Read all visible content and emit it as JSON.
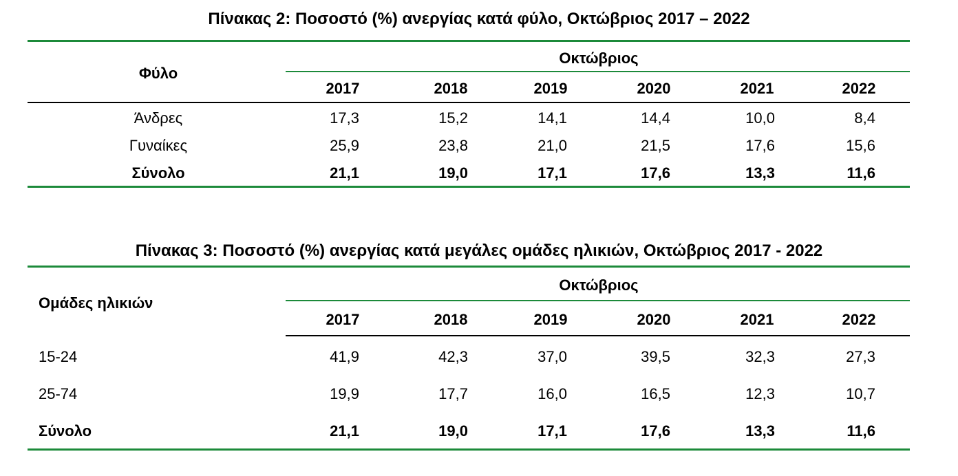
{
  "table2": {
    "title": "Πίνακας 2: Ποσοστό (%) ανεργίας κατά φύλο, Οκτώβριος 2017 – 2022",
    "row_header": "Φύλο",
    "group_header": "Οκτώβριος",
    "years": [
      "2017",
      "2018",
      "2019",
      "2020",
      "2021",
      "2022"
    ],
    "rows": [
      {
        "label": "Άνδρες",
        "values": [
          "17,3",
          "15,2",
          "14,1",
          "14,4",
          "10,0",
          "8,4"
        ]
      },
      {
        "label": "Γυναίκες",
        "values": [
          "25,9",
          "23,8",
          "21,0",
          "21,5",
          "17,6",
          "15,6"
        ]
      },
      {
        "label": "Σύνολο",
        "values": [
          "21,1",
          "19,0",
          "17,1",
          "17,6",
          "13,3",
          "11,6"
        ]
      }
    ]
  },
  "table3": {
    "title": "Πίνακας 3: Ποσοστό (%) ανεργίας κατά μεγάλες ομάδες ηλικιών, Οκτώβριος 2017 - 2022",
    "row_header": "Ομάδες ηλικιών",
    "group_header": "Οκτώβριος",
    "years": [
      "2017",
      "2018",
      "2019",
      "2020",
      "2021",
      "2022"
    ],
    "rows": [
      {
        "label": "15-24",
        "values": [
          "41,9",
          "42,3",
          "37,0",
          "39,5",
          "32,3",
          "27,3"
        ]
      },
      {
        "label": "25-74",
        "values": [
          "19,9",
          "17,7",
          "16,0",
          "16,5",
          "12,3",
          "10,7"
        ]
      },
      {
        "label": "Σύνολο",
        "values": [
          "21,1",
          "19,0",
          "17,1",
          "17,6",
          "13,3",
          "11,6"
        ]
      }
    ]
  },
  "colors": {
    "rule": "#1c8a3a"
  }
}
